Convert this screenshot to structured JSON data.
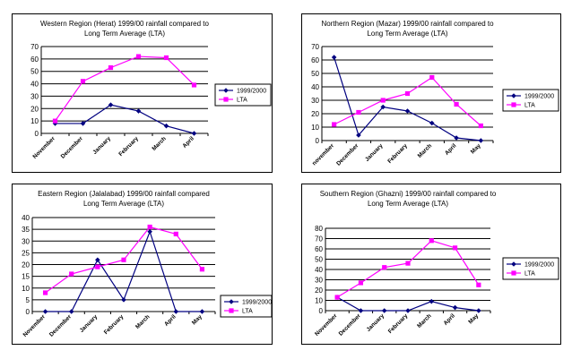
{
  "colors": {
    "series_1999": "#000080",
    "series_lta": "#ff00ff",
    "grid": "#000000"
  },
  "chart_data": [
    {
      "type": "line",
      "title_lines": [
        "Western Region (Herat) 1999/00 rainfall compared to",
        "Long Term Average (LTA)"
      ],
      "categories": [
        "November",
        "December",
        "January",
        "February",
        "March",
        "April"
      ],
      "ylim": [
        0,
        70
      ],
      "yticks": [
        0,
        10,
        20,
        30,
        40,
        50,
        60,
        70
      ],
      "series": [
        {
          "name": "1999/2000",
          "values": [
            8,
            8,
            23,
            18,
            6,
            0
          ]
        },
        {
          "name": "LTA",
          "values": [
            10,
            42,
            53,
            62,
            61,
            39
          ]
        }
      ],
      "legend": "right"
    },
    {
      "type": "line",
      "title_lines": [
        "Northern Region (Mazar) 1999/00 rainfall compared to",
        "Long Term Average (LTA)"
      ],
      "categories": [
        "november",
        "December",
        "January",
        "February",
        "March",
        "April",
        "May"
      ],
      "ylim": [
        0,
        70
      ],
      "yticks": [
        0,
        10,
        20,
        30,
        40,
        50,
        60,
        70
      ],
      "series": [
        {
          "name": "1999/2000",
          "values": [
            62,
            4,
            25,
            22,
            13,
            2,
            0
          ]
        },
        {
          "name": "LTA",
          "values": [
            12,
            21,
            30,
            35,
            47,
            27,
            11
          ]
        }
      ],
      "legend": "right"
    },
    {
      "type": "line",
      "title_lines": [
        "Eastern Region (Jalalabad) 1999/00 rainfall compared",
        "Long Term Average (LTA)"
      ],
      "categories": [
        "November",
        "December",
        "January",
        "February",
        "March",
        "April",
        "May"
      ],
      "ylim": [
        0,
        40
      ],
      "yticks": [
        0,
        5,
        10,
        15,
        20,
        25,
        30,
        35,
        40
      ],
      "series": [
        {
          "name": "1999/2000",
          "values": [
            0,
            0,
            22,
            5,
            34,
            0,
            0
          ]
        },
        {
          "name": "LTA",
          "values": [
            8,
            16,
            19,
            22,
            36,
            33,
            18
          ]
        }
      ],
      "legend": "right"
    },
    {
      "type": "line",
      "title_lines": [
        "Southern Region (Ghazni) 1999/00 rainfall compared to",
        "Long Term Average (LTA)"
      ],
      "categories": [
        "November",
        "December",
        "January",
        "February",
        "March",
        "April",
        "May"
      ],
      "ylim": [
        0,
        80
      ],
      "yticks": [
        0,
        10,
        20,
        30,
        40,
        50,
        60,
        70,
        80
      ],
      "series": [
        {
          "name": "1999/2000",
          "values": [
            13,
            0,
            0,
            0,
            9,
            3,
            0
          ]
        },
        {
          "name": "LTA",
          "values": [
            13,
            27,
            42,
            46,
            68,
            61,
            25
          ]
        }
      ],
      "legend": "right"
    }
  ]
}
